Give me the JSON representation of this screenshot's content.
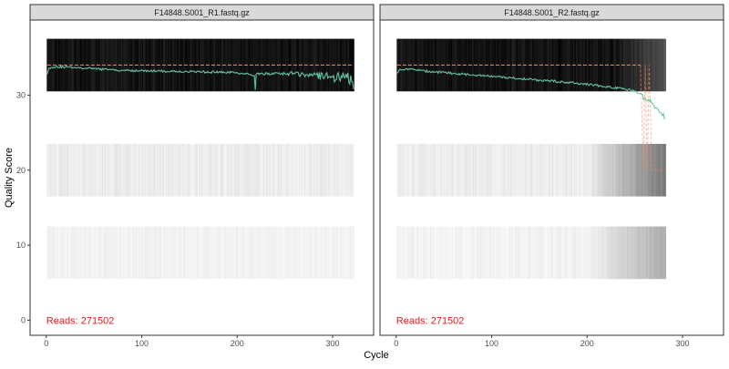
{
  "chart_data": {
    "type": "heatmap",
    "xlabel": "Cycle",
    "ylabel": "Quality Score",
    "xlim": [
      -17,
      343
    ],
    "ylim": [
      -2,
      40
    ],
    "x_ticks": [
      0,
      100,
      200,
      300
    ],
    "y_ticks": [
      0,
      10,
      20,
      30
    ],
    "grid": false,
    "colors": {
      "mean_line": "#66c2a5",
      "quantile_line": "#fc8d62",
      "reads_text": "#e41a1c",
      "strip_bg": "#d9d9d9",
      "heat_dark": "#000000",
      "heat_light": "#ffffff"
    },
    "quality_bands": [
      {
        "y_low": 30.5,
        "y_high": 37.5,
        "darkness": 0.93
      },
      {
        "y_low": 16.5,
        "y_high": 23.5,
        "darkness": 0.07
      },
      {
        "y_low": 5.5,
        "y_high": 12.5,
        "darkness": 0.05
      }
    ],
    "panels": [
      {
        "title": "F14848.S001_R1.fastq.gz",
        "reads_label": "Reads:",
        "reads": "271502",
        "cycles": 322,
        "quantile_score": 34,
        "mean_quality": [
          [
            1,
            32.8
          ],
          [
            3,
            33.6
          ],
          [
            10,
            33.8
          ],
          [
            30,
            33.7
          ],
          [
            50,
            33.5
          ],
          [
            80,
            33.3
          ],
          [
            120,
            33.2
          ],
          [
            160,
            33.1
          ],
          [
            200,
            33.0
          ],
          [
            218,
            32.6
          ],
          [
            219,
            30.7
          ],
          [
            220,
            32.8
          ],
          [
            250,
            32.9
          ],
          [
            280,
            32.7
          ],
          [
            300,
            32.4
          ],
          [
            315,
            32.3
          ],
          [
            320,
            31.8
          ],
          [
            322,
            30.8
          ]
        ]
      },
      {
        "title": "F14848.S001_R2.fastq.gz",
        "reads_label": "Reads:",
        "reads": "271502",
        "cycles": 282,
        "quantile_score": 34,
        "mean_quality": [
          [
            1,
            32.9
          ],
          [
            3,
            33.3
          ],
          [
            10,
            33.5
          ],
          [
            30,
            33.2
          ],
          [
            60,
            32.9
          ],
          [
            90,
            32.6
          ],
          [
            120,
            32.3
          ],
          [
            150,
            32.0
          ],
          [
            180,
            31.7
          ],
          [
            210,
            31.3
          ],
          [
            240,
            30.8
          ],
          [
            250,
            30.5
          ],
          [
            255,
            30.2
          ],
          [
            260,
            29.6
          ],
          [
            265,
            29.2
          ],
          [
            270,
            28.6
          ],
          [
            275,
            28.0
          ],
          [
            278,
            27.5
          ],
          [
            282,
            26.9
          ]
        ],
        "quantile_drop": [
          [
            256,
            34
          ],
          [
            259,
            20
          ],
          [
            261,
            34
          ],
          [
            263,
            20
          ],
          [
            265,
            34
          ],
          [
            268,
            20
          ],
          [
            282,
            20
          ]
        ]
      }
    ]
  }
}
